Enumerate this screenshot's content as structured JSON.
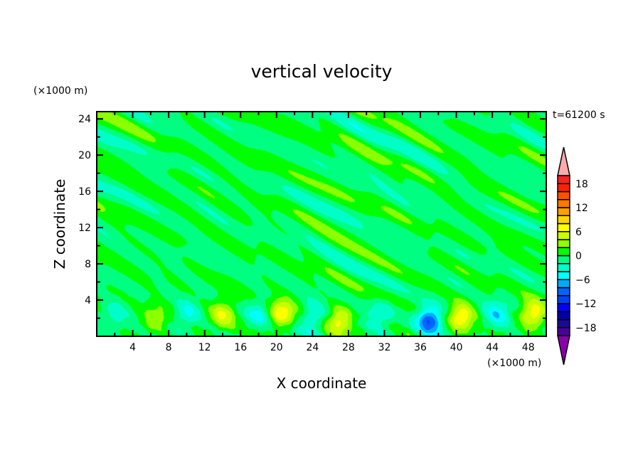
{
  "chart_data": {
    "type": "heatmap",
    "subtype": "filled-contour",
    "title": "vertical velocity",
    "xlabel": "X coordinate",
    "ylabel": "Z coordinate",
    "x_unit": "(×1000 m)",
    "y_unit": "(×1000 m)",
    "time_label": "t=61200 s",
    "xlim": [
      0,
      50
    ],
    "ylim": [
      0,
      24.8
    ],
    "x_ticks": [
      4,
      8,
      12,
      16,
      20,
      24,
      28,
      32,
      36,
      40,
      44,
      48
    ],
    "y_ticks": [
      4,
      8,
      12,
      16,
      20,
      24
    ],
    "colorbar": {
      "levels": [
        -20,
        -18,
        -16,
        -14,
        -12,
        -10,
        -8,
        -6,
        -4,
        -2,
        0,
        2,
        4,
        6,
        8,
        10,
        12,
        14,
        16,
        18,
        20
      ],
      "tick_labels": [
        "18",
        "12",
        "6",
        "0",
        "−6",
        "−12",
        "−18"
      ],
      "tick_values": [
        18,
        12,
        6,
        0,
        -6,
        -12,
        -18
      ],
      "colors_low_to_high": [
        "#4a0099",
        "#1a0a9a",
        "#0000aa",
        "#0000ff",
        "#0040ff",
        "#0064ff",
        "#00aaff",
        "#00ffff",
        "#00ffc8",
        "#00ff80",
        "#00ff00",
        "#8cff00",
        "#c8ff00",
        "#ffff00",
        "#ffd700",
        "#ffa000",
        "#ff7800",
        "#ff5000",
        "#ff2000",
        "#ff2020"
      ],
      "over_color": "#ffaaaa",
      "under_color": "#8800aa",
      "extend": "both"
    },
    "features": [
      {
        "x": 6.5,
        "z": 2,
        "w": 4
      },
      {
        "x": 14,
        "z": 2.5,
        "w": 6
      },
      {
        "x": 20.5,
        "z": 2.5,
        "w": 8
      },
      {
        "x": 27,
        "z": 1.8,
        "w": 7
      },
      {
        "x": 40.5,
        "z": 2.2,
        "w": 8
      },
      {
        "x": 48.5,
        "z": 2.5,
        "w": 8
      },
      {
        "x": 2,
        "z": 2.5,
        "w": -3
      },
      {
        "x": 10,
        "z": 2.5,
        "w": -4
      },
      {
        "x": 18,
        "z": 2.5,
        "w": -4
      },
      {
        "x": 24,
        "z": 2,
        "w": -5
      },
      {
        "x": 31.5,
        "z": 2.5,
        "w": -4
      },
      {
        "x": 37,
        "z": 1.8,
        "w": -10
      },
      {
        "x": 44.5,
        "z": 2.5,
        "w": -5
      }
    ]
  }
}
